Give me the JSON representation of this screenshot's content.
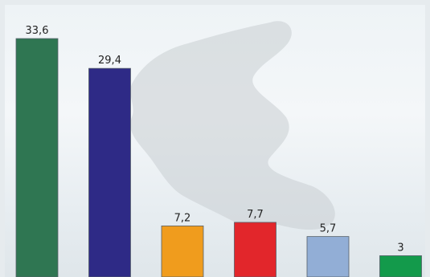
{
  "chart_data": {
    "type": "bar",
    "categories": [
      "",
      "",
      "",
      "",
      "",
      ""
    ],
    "values": [
      33.6,
      29.4,
      7.2,
      7.7,
      5.7,
      3
    ],
    "value_labels": [
      "33,6",
      "29,4",
      "7,2",
      "7,7",
      "5,7",
      "3"
    ],
    "colors": [
      "#2f7652",
      "#2e2a86",
      "#f09c1d",
      "#e2262b",
      "#92aed6",
      "#139a4b"
    ],
    "ylim": [
      0,
      37
    ],
    "title": "",
    "xlabel": "",
    "ylabel": "",
    "grid": false,
    "legend": "none"
  }
}
